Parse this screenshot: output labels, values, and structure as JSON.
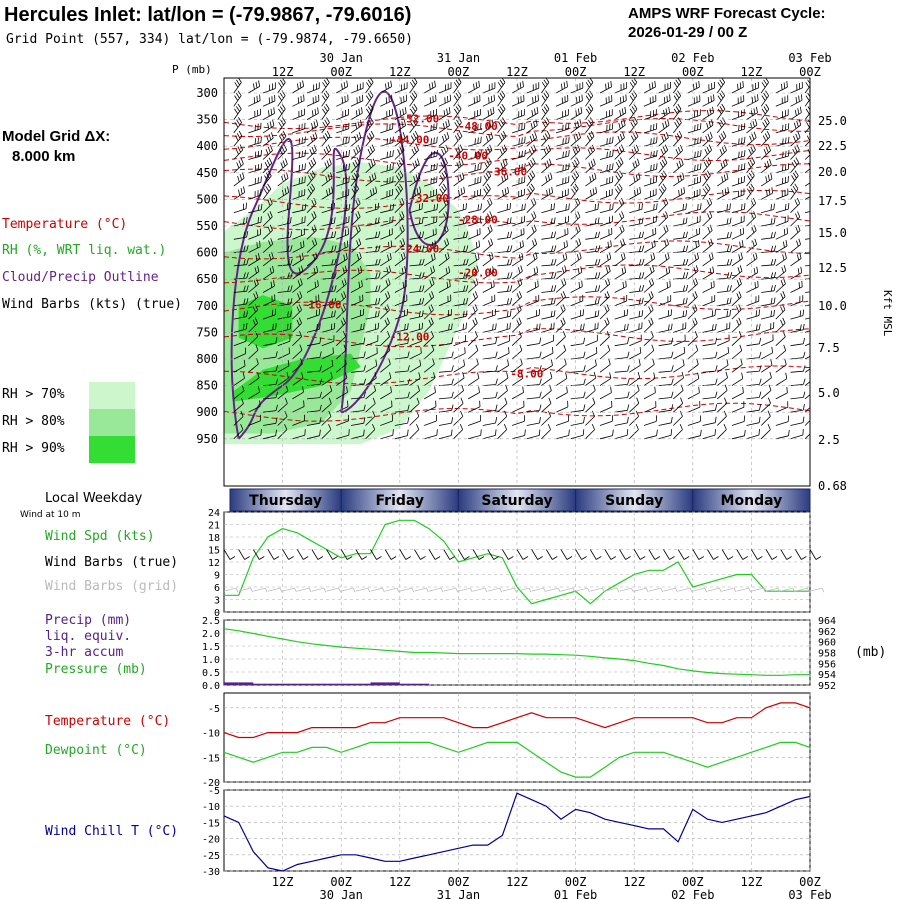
{
  "header": {
    "title": "Hercules Inlet:  lat/lon = (-79.9867, -79.6016)",
    "subtitle": "Grid Point (557, 334) lat/lon = (-79.9874, -79.6650)",
    "cycle_label": "AMPS WRF Forecast Cycle:",
    "cycle_value": "2026-01-29 / 00  Z"
  },
  "left_labels": {
    "grid_title": "Model Grid ΔX:",
    "grid_value": "8.000 km",
    "temperature": "Temperature (°C)",
    "rh": "RH (%, WRT liq. wat.)",
    "cloud": "Cloud/Precip Outline",
    "wind_barbs": "Wind Barbs (kts) (true)",
    "rh_legend": [
      "RH > 70%",
      "RH > 80%",
      "RH > 90%"
    ],
    "local_weekday": "Local Weekday",
    "wind_at_10m": "Wind at 10 m",
    "wind_spd": "Wind Spd (kts)",
    "wind_barbs_true": "Wind Barbs (true)",
    "wind_barbs_grid": "Wind Barbs (grid)",
    "precip_1": "Precip (mm)",
    "precip_2": "liq. equiv.",
    "precip_3": "3-hr accum",
    "pressure": "Pressure (mb)",
    "temp2": "Temperature (°C)",
    "dewpoint": "Dewpoint (°C)",
    "windchill": "Wind Chill T (°C)"
  },
  "colors": {
    "temperature": "#cc0000",
    "rh70": "#ccf7cc",
    "rh80": "#99e899",
    "rh90": "#33dd33",
    "cloud": "#662288",
    "wind": "#22cc22",
    "grid_barbs": "#bbbbbb",
    "precip": "#552288",
    "pressure": "#22cc22",
    "dewpoint": "#22cc22",
    "windchill": "#000099",
    "weekday_band": "#2a3b80"
  },
  "chart_data": [
    {
      "type": "heatmap",
      "title": "Pressure-time cross section",
      "ylabel": "P (mb)",
      "ylabel_right": "Kft MSL",
      "y_ticks": [
        300,
        350,
        400,
        450,
        500,
        550,
        600,
        650,
        700,
        750,
        800,
        850,
        900,
        950
      ],
      "y_right_ticks": [
        "25.0",
        "22.5",
        "20.0",
        "17.5",
        "15.0",
        "12.5",
        "10.0",
        "7.5",
        "5.0",
        "2.5",
        "0.68"
      ],
      "time_ticks": [
        "12Z",
        "00Z",
        "12Z",
        "00Z",
        "12Z",
        "00Z",
        "12Z",
        "00Z",
        "12Z",
        "00Z"
      ],
      "date_ticks": [
        "30 Jan",
        "31 Jan",
        "01 Feb",
        "02 Feb",
        "03 Feb"
      ],
      "temperature_contour_labels": [
        "-52.00",
        "-48.00",
        "-44.00",
        "-40.00",
        "-36.00",
        "-32.00",
        "-28.00",
        "-24.00",
        "-20.00",
        "-16.00",
        "-12.00",
        "-8.00"
      ]
    },
    {
      "type": "line",
      "title": "Wind at 10 m",
      "ylabel": "Wind Spd (kts)",
      "y_ticks": [
        0,
        3,
        6,
        9,
        12,
        15,
        18,
        21,
        24
      ],
      "ylim": [
        0,
        24
      ],
      "x_hours": [
        0,
        3,
        6,
        9,
        12,
        15,
        18,
        21,
        24,
        27,
        30,
        33,
        36,
        39,
        42,
        45,
        48,
        51,
        54,
        57,
        60,
        63,
        66,
        69,
        72,
        75,
        78,
        81,
        84,
        87,
        90,
        93,
        96,
        99,
        102,
        105,
        108,
        111,
        114,
        117,
        120
      ],
      "series": [
        {
          "name": "Wind Spd (kts)",
          "values": [
            4,
            4,
            13,
            18,
            20,
            19,
            17,
            15,
            13,
            14,
            14,
            21,
            22,
            22,
            20,
            17,
            12,
            13,
            14,
            13,
            6,
            2,
            3,
            4,
            5,
            2,
            5,
            7,
            9,
            10,
            10,
            12,
            6,
            7,
            8,
            9,
            9,
            5,
            5,
            5,
            5
          ]
        }
      ]
    },
    {
      "type": "line",
      "title": "Precip / Pressure",
      "ylabel": "Precip (mm)",
      "ylabel_right": "(mb)",
      "y_ticks": [
        "0.0",
        "0.5",
        "1.0",
        "1.5",
        "2.0",
        "2.5"
      ],
      "y_right_ticks": [
        952,
        954,
        956,
        958,
        960,
        962,
        964
      ],
      "precip_bars": [
        0.1,
        0.1,
        0.05,
        0.05,
        0.05,
        0.05,
        0.05,
        0.05,
        0.05,
        0.05,
        0.1,
        0.1,
        0.05,
        0.05
      ],
      "series": [
        {
          "name": "Pressure (mb)",
          "values": [
            962.4,
            962,
            961.5,
            961,
            960.5,
            960,
            959.6,
            959.3,
            959,
            958.8,
            958.6,
            958.4,
            958.2,
            958,
            958,
            957.9,
            957.8,
            957.8,
            957.8,
            957.8,
            957.8,
            957.7,
            957.7,
            957.6,
            957.5,
            957.3,
            957,
            956.8,
            956.5,
            956,
            955.6,
            955,
            954.6,
            954.3,
            954.1,
            954,
            953.9,
            953.8,
            953.8,
            953.9,
            953.9
          ]
        }
      ]
    },
    {
      "type": "line",
      "title": "Temperature / Dewpoint",
      "y_ticks": [
        -5,
        -10,
        -15,
        -20
      ],
      "ylim": [
        -20,
        -2
      ],
      "series": [
        {
          "name": "Temperature (°C)",
          "values": [
            -10,
            -11,
            -11,
            -10,
            -10,
            -10,
            -9,
            -9,
            -9,
            -9,
            -8,
            -8,
            -7,
            -7,
            -7,
            -7,
            -8,
            -9,
            -9,
            -8,
            -7,
            -6,
            -7,
            -7,
            -7,
            -8,
            -9,
            -8,
            -7,
            -7,
            -7,
            -7,
            -7,
            -8,
            -8,
            -7,
            -7,
            -5,
            -4,
            -4,
            -5
          ]
        },
        {
          "name": "Dewpoint (°C)",
          "values": [
            -14,
            -15,
            -16,
            -15,
            -14,
            -14,
            -13,
            -13,
            -14,
            -13,
            -12,
            -12,
            -12,
            -12,
            -12,
            -13,
            -14,
            -13,
            -12,
            -12,
            -12,
            -14,
            -16,
            -18,
            -19,
            -19,
            -17,
            -15,
            -14,
            -14,
            -14,
            -15,
            -16,
            -17,
            -16,
            -15,
            -14,
            -13,
            -12,
            -12,
            -13
          ]
        }
      ]
    },
    {
      "type": "line",
      "title": "Wind Chill",
      "y_ticks": [
        -5,
        -10,
        -15,
        -20,
        -25,
        -30
      ],
      "ylim": [
        -30,
        -5
      ],
      "series": [
        {
          "name": "Wind Chill T (°C)",
          "values": [
            -13,
            -15,
            -24,
            -29,
            -30,
            -28,
            -27,
            -26,
            -25,
            -25,
            -26,
            -27,
            -27,
            -26,
            -25,
            -24,
            -23,
            -22,
            -22,
            -19,
            -6,
            -8,
            -10,
            -14,
            -11,
            -12,
            -14,
            -15,
            -16,
            -17,
            -17,
            -21,
            -11,
            -14,
            -15,
            -14,
            -13,
            -12,
            -10,
            -8,
            -7
          ]
        }
      ]
    }
  ],
  "weekdays": [
    "Thursday",
    "Friday",
    "Saturday",
    "Sunday",
    "Monday"
  ]
}
